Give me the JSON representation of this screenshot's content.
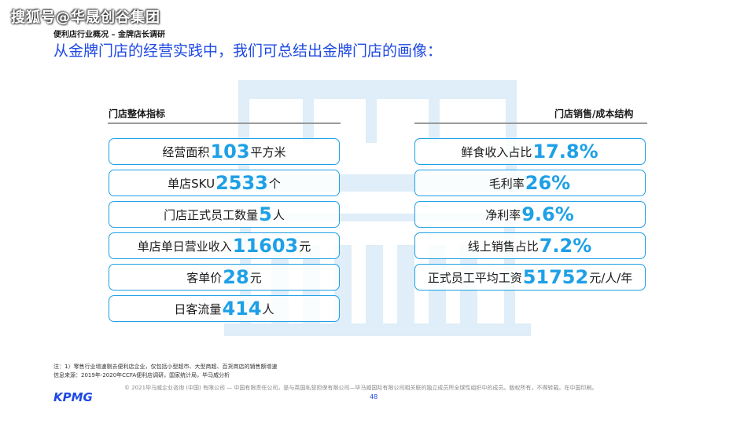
{
  "watermark": "搜狐号@华晟创谷集团",
  "subtitle": "便利店行业概况 – 金牌店长调研",
  "headline": "从金牌门店的经营实践中，我们可总结出金牌门店的画像：",
  "left_section": {
    "title": "门店整体指标",
    "items": [
      {
        "label": "经营面积",
        "value": "103",
        "unit": "平方米"
      },
      {
        "label": "单店SKU",
        "value": "2533",
        "unit": "个"
      },
      {
        "label": "门店正式员工数量",
        "value": "5",
        "unit": "人"
      },
      {
        "label": "单店单日营业收入",
        "value": "11603",
        "unit": "元"
      },
      {
        "label": "客单价",
        "value": "28",
        "unit": "元"
      },
      {
        "label": "日客流量",
        "value": "414",
        "unit": "人"
      }
    ]
  },
  "right_section": {
    "title": "门店销售/成本结构",
    "items": [
      {
        "label": "鲜食收入占比",
        "value": "17.8%",
        "unit": ""
      },
      {
        "label": "毛利率",
        "value": "26%",
        "unit": ""
      },
      {
        "label": "净利率",
        "value": "9.6%",
        "unit": ""
      },
      {
        "label": "线上销售占比",
        "value": "7.2%",
        "unit": ""
      },
      {
        "label": "正式员工平均工资",
        "value": "51752",
        "unit": "元/人/年"
      }
    ]
  },
  "notes": {
    "line1": "注：1）零售行业增速剔去便利店企业，仅包括小型超市、大型商超、百货商店的销售额增速",
    "line2": "信息来源：2019年-2020年CCFA便利店调研，国家统计局，毕马威分析"
  },
  "logo_text": "KPMG",
  "copyright": "© 2021毕马威企业咨询 (中国) 有限公司 — 中国有限责任公司，是与英国私营担保有限公司—毕马威国际有限公司相关联的独立成员所全球性组织中的成员。版权所有，不得转载。在中国印刷。",
  "page_number": "48",
  "colors": {
    "accent": "#1ea0e6",
    "brand": "#1e49e2",
    "illustration": "#dfeef8"
  },
  "icons": {
    "background": "storefront-illustration"
  }
}
